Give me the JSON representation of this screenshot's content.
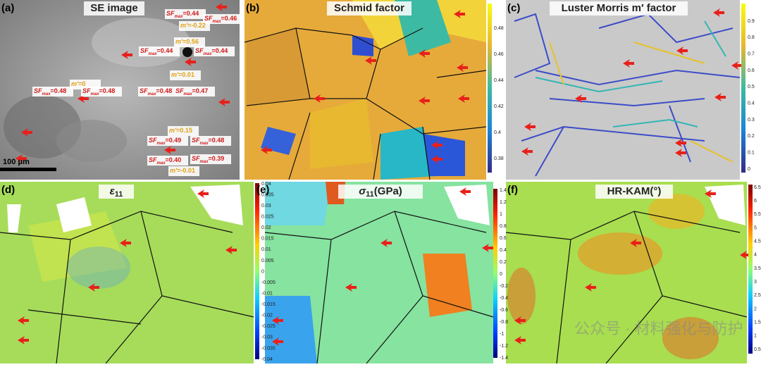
{
  "panels": [
    {
      "label": "(a)",
      "title": "SE image"
    },
    {
      "label": "(b)",
      "title": "Schmid factor",
      "colorbar_ticks": [
        "0.48",
        "0.46",
        "0.44",
        "0.42",
        "0.4",
        "0.38"
      ]
    },
    {
      "label": "(c)",
      "title": "Luster Morris m′ factor",
      "colorbar_ticks": [
        "0.9",
        "0.8",
        "0.7",
        "0.6",
        "0.5",
        "0.4",
        "0.3",
        "0.2",
        "0.1",
        "0"
      ]
    },
    {
      "label": "(d)",
      "title": {
        "symbol": "ε",
        "sub": "11"
      },
      "colorbar_ticks": [
        "0.04",
        "0.035",
        "0.03",
        "0.025",
        "0.02",
        "0.015",
        "0.01",
        "0.005",
        "0",
        "-0.005",
        "-0.01",
        "-0.015",
        "-0.02",
        "-0.025",
        "-0.03",
        "-0.035",
        "-0.04"
      ]
    },
    {
      "label": "(e)",
      "title": {
        "symbol": "σ",
        "sub": "11",
        "rest": "(GPa)"
      },
      "colorbar_ticks": [
        "1.4",
        "1.2",
        "1",
        "0.8",
        "0.6",
        "0.4",
        "0.2",
        "0",
        "-0.2",
        "-0.4",
        "-0.6",
        "-0.8",
        "-1",
        "-1.2",
        "-1.4"
      ]
    },
    {
      "label": "(f)",
      "title": "HR-KAM(°)",
      "colorbar_ticks": [
        "6.5",
        "6",
        "5.5",
        "5",
        "4.5",
        "4",
        "3.5",
        "3",
        "2.5",
        "2",
        "1.5",
        "1",
        "0.5"
      ]
    }
  ],
  "scale_bar": "100 μm",
  "annotations": [
    {
      "symbol": "SF",
      "sub": "max",
      "text": "=0.44"
    },
    {
      "symbol": "SF",
      "sub": "max",
      "text": "=0.46"
    },
    {
      "symbol": "m′",
      "text": "=-0.22"
    },
    {
      "symbol": "m′",
      "text": "=0.56"
    },
    {
      "symbol": "SF",
      "sub": "max",
      "text": "=0.44"
    },
    {
      "symbol": "SF",
      "sub": "max",
      "text": "=0.44"
    },
    {
      "symbol": "m′",
      "text": "=0.01"
    },
    {
      "symbol": "m′",
      "text": "=0"
    },
    {
      "symbol": "SF",
      "sub": "max",
      "text": "=0.48"
    },
    {
      "symbol": "SF",
      "sub": "max",
      "text": "=0.48"
    },
    {
      "symbol": "SF",
      "sub": "max",
      "text": "=0.48"
    },
    {
      "symbol": "SF",
      "sub": "max",
      "text": "=0.47"
    },
    {
      "symbol": "m′",
      "text": "=0.15"
    },
    {
      "symbol": "SF",
      "sub": "max",
      "text": "=0.49"
    },
    {
      "symbol": "SF",
      "sub": "max",
      "text": "=0.48"
    },
    {
      "symbol": "SF",
      "sub": "max",
      "text": "=0.40"
    },
    {
      "symbol": "SF",
      "sub": "max",
      "text": "=0.39"
    },
    {
      "symbol": "m′",
      "text": "=-0.01"
    }
  ],
  "watermark": "公众号 · 材料强化与防护"
}
